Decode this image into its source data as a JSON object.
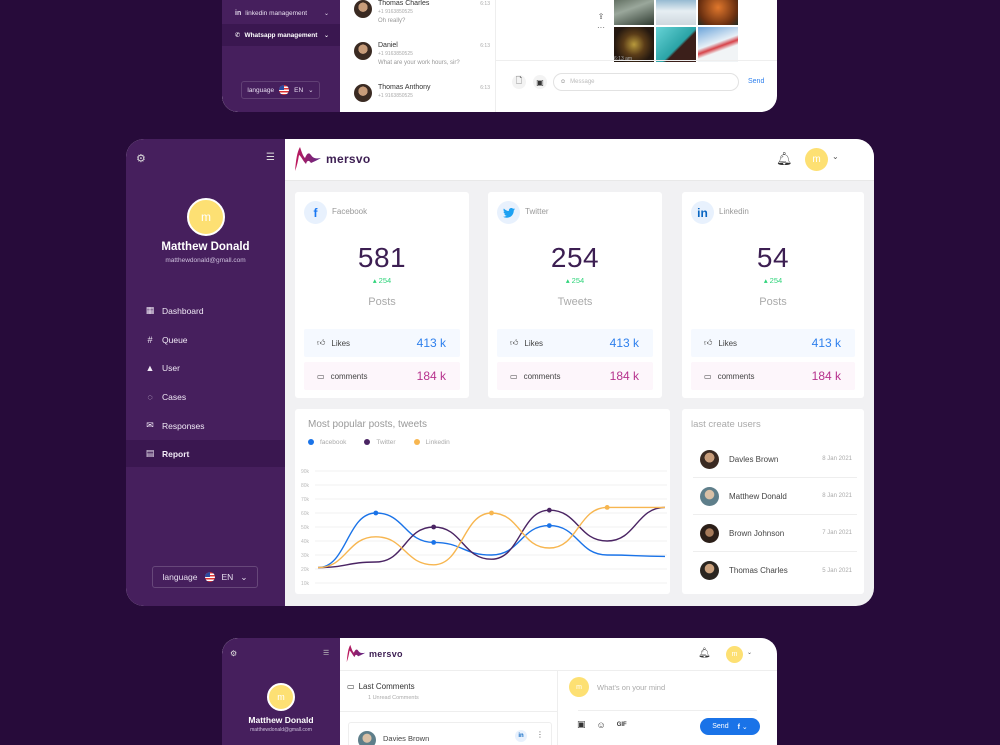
{
  "top_panel": {
    "menu": [
      {
        "label": "linkedin management",
        "icon": "in"
      },
      {
        "label": "Whatsapp management",
        "icon": "☏"
      }
    ],
    "language": {
      "label": "language",
      "code": "EN"
    },
    "chats": [
      {
        "name": "Thomas Charles",
        "phone": "+1 9163850525",
        "message": "Oh really?",
        "time": "6:13"
      },
      {
        "name": "Daniel",
        "phone": "+1 9163850525",
        "message": "What are your work hours, sir?",
        "time": "6:13"
      },
      {
        "name": "Thomas Anthony",
        "phone": "+1 9163850525",
        "message": "",
        "time": "6:13"
      }
    ],
    "conversation": {
      "time": "6:13 am",
      "message_placeholder": "Message",
      "send_label": "Send"
    }
  },
  "main_panel": {
    "profile": {
      "initial": "m",
      "name": "Matthew Donald",
      "email": "matthewdonald@gmall.com"
    },
    "nav": [
      {
        "label": "Dashboard",
        "icon": "▦"
      },
      {
        "label": "Queue",
        "icon": "#"
      },
      {
        "label": "User",
        "icon": "👤"
      },
      {
        "label": "Cases",
        "icon": "◌"
      },
      {
        "label": "Responses",
        "icon": "✉"
      },
      {
        "label": "Report",
        "icon": "▤",
        "active": true
      }
    ],
    "language": {
      "label": "language",
      "code": "EN"
    },
    "brand": "mersvo",
    "user_initial": "m",
    "stats": [
      {
        "network": "Facebook",
        "icon": "f",
        "icon_color": "#1877f2",
        "count": "581",
        "delta": "254",
        "label": "Posts",
        "likes_label": "Likes",
        "likes": "413 k",
        "comments_label": "comments",
        "comments": "184 k"
      },
      {
        "network": "Twitter",
        "icon": "🐦",
        "icon_color": "#1da1f2",
        "count": "254",
        "delta": "254",
        "label": "Tweets",
        "likes_label": "Likes",
        "likes": "413 k",
        "comments_label": "comments",
        "comments": "184 k"
      },
      {
        "network": "Linkedin",
        "icon": "in",
        "icon_color": "#0a66c2",
        "count": "54",
        "delta": "254",
        "label": "Posts",
        "likes_label": "Likes",
        "likes": "413 k",
        "comments_label": "comments",
        "comments": "184 k"
      }
    ],
    "chart": {
      "title": "Most popular posts, tweets",
      "legend": [
        {
          "label": "facebook",
          "color": "#1a73e8"
        },
        {
          "label": "Twitter",
          "color": "#4a2463"
        },
        {
          "label": "Linkedin",
          "color": "#f7b650"
        }
      ]
    },
    "users": {
      "title": "last create users",
      "items": [
        {
          "name": "Davles Brown",
          "date": "8 Jan 2021"
        },
        {
          "name": "Matthew Donald",
          "date": "8 Jan 2021"
        },
        {
          "name": "Brown Johnson",
          "date": "7 Jan 2021"
        },
        {
          "name": "Thomas Charles",
          "date": "5 Jan 2021"
        }
      ]
    }
  },
  "bottom_panel": {
    "profile": {
      "initial": "m",
      "name": "Matthew Donald",
      "email": "matthewdonald@gmall.com"
    },
    "brand": "mersvo",
    "user_initial": "m",
    "last_comments": {
      "title": "Last Comments",
      "subtitle": "1 Unread Comments",
      "first": {
        "name": "Davies Brown",
        "network": "in"
      }
    },
    "composer": {
      "placeholder": "What's on your mind",
      "gif": "GIF",
      "send": "Send",
      "network": "f"
    }
  },
  "chart_data": {
    "type": "line",
    "title": "Most popular posts, tweets",
    "x": [
      0,
      1,
      2,
      3,
      4,
      5,
      6
    ],
    "yticks": [
      "10k",
      "20k",
      "30k",
      "40k",
      "50k",
      "60k",
      "70k",
      "80k",
      "90k"
    ],
    "ylim": [
      10,
      90
    ],
    "series": [
      {
        "name": "facebook",
        "color": "#1a73e8",
        "values": [
          21,
          60,
          39,
          30,
          51,
          30,
          29
        ]
      },
      {
        "name": "Twitter",
        "color": "#4a2463",
        "values": [
          21,
          25,
          50,
          27,
          62,
          40,
          64
        ]
      },
      {
        "name": "Linkedin",
        "color": "#f7b650",
        "values": [
          21,
          43,
          23,
          60,
          35,
          64,
          64
        ]
      }
    ]
  }
}
